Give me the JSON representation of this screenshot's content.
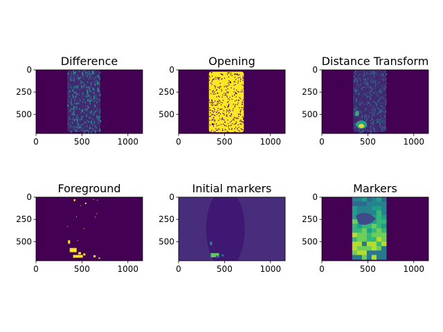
{
  "figure": {
    "background": "#ffffff",
    "rows": 2,
    "cols": 3
  },
  "colormap": {
    "name": "viridis",
    "low": "#440154",
    "mid": "#21918c",
    "high": "#fde725"
  },
  "chart_data": [
    {
      "type": "heatmap",
      "title": "Difference",
      "xlabel": "",
      "ylabel": "",
      "xlim": [
        0,
        1160
      ],
      "ylim": [
        715,
        0
      ],
      "xticks": [
        0,
        500,
        1000
      ],
      "yticks": [
        0,
        250,
        500
      ],
      "content": "noisy-texture",
      "region_x": [
        340,
        700
      ],
      "region_y": [
        0,
        700
      ]
    },
    {
      "type": "heatmap",
      "title": "Opening",
      "xlabel": "",
      "ylabel": "",
      "xlim": [
        0,
        1160
      ],
      "ylim": [
        715,
        0
      ],
      "xticks": [
        0,
        500,
        1000
      ],
      "yticks": [
        0,
        250,
        500
      ],
      "content": "solid-with-holes",
      "region_x": [
        330,
        710
      ],
      "region_y": [
        20,
        700
      ]
    },
    {
      "type": "heatmap",
      "title": "Distance Transform",
      "xlabel": "",
      "ylabel": "",
      "xlim": [
        0,
        1160
      ],
      "ylim": [
        715,
        0
      ],
      "xticks": [
        0,
        500,
        1000
      ],
      "yticks": [
        0,
        250,
        500
      ],
      "content": "distance-field",
      "region_x": [
        340,
        700
      ],
      "region_y": [
        0,
        700
      ]
    },
    {
      "type": "heatmap",
      "title": "Foreground",
      "xlabel": "",
      "ylabel": "",
      "xlim": [
        0,
        1160
      ],
      "ylim": [
        715,
        0
      ],
      "xticks": [
        0,
        500,
        1000
      ],
      "yticks": [
        0,
        250,
        500
      ],
      "content": "sparse-blobs",
      "region_x": [
        330,
        700
      ],
      "region_y": [
        0,
        700
      ]
    },
    {
      "type": "heatmap",
      "title": "Initial markers",
      "xlabel": "",
      "ylabel": "",
      "xlim": [
        0,
        1160
      ],
      "ylim": [
        715,
        0
      ],
      "xticks": [
        0,
        500,
        1000
      ],
      "yticks": [
        0,
        250,
        500
      ],
      "content": "markers-on-background",
      "region_x": [
        300,
        720
      ],
      "region_y": [
        0,
        715
      ]
    },
    {
      "type": "heatmap",
      "title": "Markers",
      "xlabel": "",
      "ylabel": "",
      "xlim": [
        0,
        1160
      ],
      "ylim": [
        715,
        0
      ],
      "xticks": [
        0,
        500,
        1000
      ],
      "yticks": [
        0,
        250,
        500
      ],
      "content": "segmented-regions",
      "region_x": [
        330,
        700
      ],
      "region_y": [
        0,
        700
      ]
    }
  ]
}
